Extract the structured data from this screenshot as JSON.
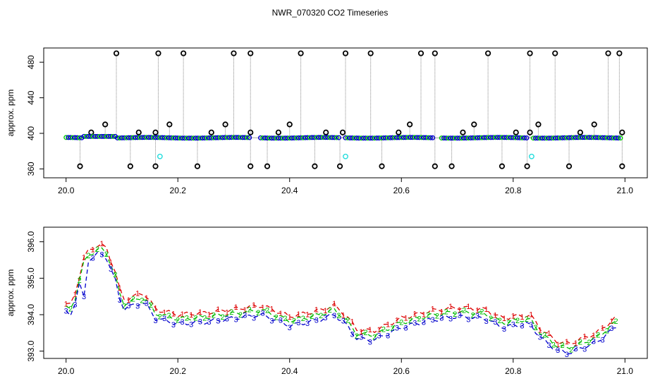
{
  "chart_data": [
    {
      "type": "scatter",
      "title": "NWR_070320  CO2 Timeseries",
      "ylabel": "approx. ppm",
      "xlim": [
        19.96,
        21.04
      ],
      "ylim": [
        350,
        496
      ],
      "x_ticks": [
        "20.0",
        "20.2",
        "20.4",
        "20.6",
        "20.8",
        "21.0"
      ],
      "y_ticks": [
        "360",
        "400",
        "440",
        "480"
      ],
      "colors": {
        "main": "#0000cc",
        "outline": "#000000",
        "secondary": "#00cc00",
        "cyan": "#22dddd",
        "trace": "#888888"
      },
      "series_main": {
        "x_start": 20.0,
        "x_end": 20.995,
        "step": 0.004,
        "gaps": [
          [
            20.33,
            20.345
          ],
          [
            20.49,
            20.5
          ],
          [
            20.66,
            20.67
          ],
          [
            20.825,
            20.835
          ]
        ]
      },
      "spike_high": [
        20.09,
        20.165,
        20.21,
        20.3,
        20.33,
        20.42,
        20.5,
        20.545,
        20.635,
        20.66,
        20.755,
        20.83,
        20.875,
        20.97,
        20.99
      ],
      "spike_low": [
        20.025,
        20.115,
        20.16,
        20.235,
        20.33,
        20.36,
        20.445,
        20.49,
        20.565,
        20.66,
        20.69,
        20.78,
        20.825,
        20.9,
        20.995
      ],
      "spike_410": [
        20.07,
        20.185,
        20.285,
        20.4,
        20.615,
        20.73,
        20.845,
        20.945
      ],
      "spike_401": [
        20.045,
        20.13,
        20.16,
        20.26,
        20.33,
        20.38,
        20.465,
        20.495,
        20.595,
        20.71,
        20.805,
        20.83,
        20.92,
        20.995
      ],
      "cyan_points": [
        {
          "x": 20.168,
          "y": 374
        },
        {
          "x": 20.5,
          "y": 374
        },
        {
          "x": 20.833,
          "y": 374
        }
      ]
    },
    {
      "type": "line",
      "ylabel": "approx. ppm",
      "xlim": [
        19.96,
        21.04
      ],
      "ylim": [
        392.8,
        396.4
      ],
      "x_ticks": [
        "20.0",
        "20.2",
        "20.4",
        "20.6",
        "20.8",
        "21.0"
      ],
      "y_ticks": [
        "393.0",
        "394.0",
        "395.0",
        "396.0"
      ],
      "series": [
        {
          "name": "1",
          "color": "#dd0000",
          "offset": 0.2
        },
        {
          "name": "2",
          "color": "#00bb00",
          "offset": 0.08
        },
        {
          "name": "3",
          "color": "#0000cc",
          "offset": -0.05
        }
      ],
      "base_curve": [
        [
          20.0,
          394.1
        ],
        [
          20.01,
          394.05
        ],
        [
          20.02,
          394.6
        ],
        [
          20.03,
          395.3
        ],
        [
          20.04,
          395.55
        ],
        [
          20.055,
          395.7
        ],
        [
          20.07,
          395.7
        ],
        [
          20.08,
          395.3
        ],
        [
          20.09,
          394.9
        ],
        [
          20.1,
          394.2
        ],
        [
          20.12,
          394.3
        ],
        [
          20.14,
          394.4
        ],
        [
          20.16,
          393.95
        ],
        [
          20.2,
          393.8
        ],
        [
          20.25,
          393.85
        ],
        [
          20.3,
          393.95
        ],
        [
          20.35,
          394.05
        ],
        [
          20.4,
          393.75
        ],
        [
          20.45,
          393.9
        ],
        [
          20.48,
          394.05
        ],
        [
          20.5,
          393.8
        ],
        [
          20.52,
          393.4
        ],
        [
          20.55,
          393.35
        ],
        [
          20.6,
          393.7
        ],
        [
          20.65,
          393.9
        ],
        [
          20.7,
          394.0
        ],
        [
          20.75,
          393.95
        ],
        [
          20.78,
          393.7
        ],
        [
          20.8,
          393.75
        ],
        [
          20.83,
          393.8
        ],
        [
          20.85,
          393.4
        ],
        [
          20.88,
          393.05
        ],
        [
          20.9,
          393.0
        ],
        [
          20.95,
          393.3
        ],
        [
          20.99,
          393.8
        ]
      ],
      "dip": {
        "x": 20.03,
        "y": 394.5
      }
    }
  ]
}
